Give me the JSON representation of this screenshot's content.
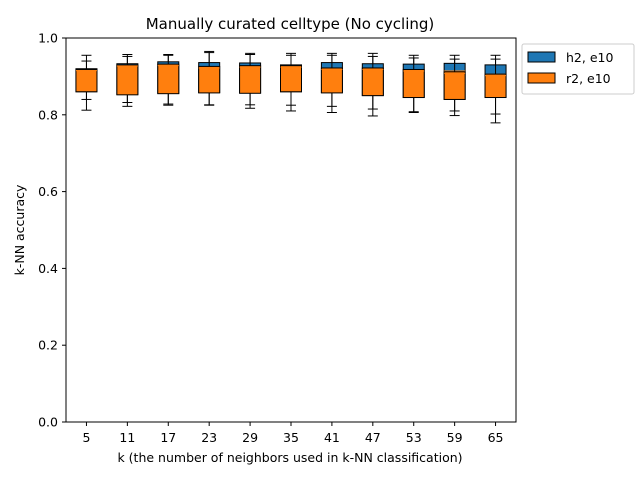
{
  "chart_data": {
    "type": "boxplot",
    "title": "Manually curated celltype (No cycling)",
    "xlabel": "k (the number of neighbors used in k-NN classification)",
    "ylabel": "k-NN accuracy",
    "ylim": [
      0.0,
      1.0
    ],
    "yticks": [
      0.0,
      0.2,
      0.4,
      0.6,
      0.8,
      1.0
    ],
    "yticklabels": [
      "0.0",
      "0.2",
      "0.4",
      "0.6",
      "0.8",
      "1.0"
    ],
    "categories": [
      "5",
      "11",
      "17",
      "23",
      "29",
      "35",
      "41",
      "47",
      "53",
      "59",
      "65"
    ],
    "grid": false,
    "legend_position": "outside-top-right",
    "series": [
      {
        "name": "h2, e10",
        "color": "#1f77b4",
        "boxes": [
          {
            "whislo": 0.84,
            "q1": 0.86,
            "med": 0.918,
            "q3": 0.92,
            "whishi": 0.94
          },
          {
            "whislo": 0.832,
            "q1": 0.853,
            "med": 0.928,
            "q3": 0.933,
            "whishi": 0.952
          },
          {
            "whislo": 0.828,
            "q1": 0.856,
            "med": 0.93,
            "q3": 0.938,
            "whishi": 0.955
          },
          {
            "whislo": 0.826,
            "q1": 0.858,
            "med": 0.925,
            "q3": 0.936,
            "whishi": 0.962
          },
          {
            "whislo": 0.826,
            "q1": 0.857,
            "med": 0.926,
            "q3": 0.935,
            "whishi": 0.957
          },
          {
            "whislo": 0.825,
            "q1": 0.86,
            "med": 0.926,
            "q3": 0.93,
            "whishi": 0.955
          },
          {
            "whislo": 0.822,
            "q1": 0.858,
            "med": 0.92,
            "q3": 0.936,
            "whishi": 0.96
          },
          {
            "whislo": 0.815,
            "q1": 0.85,
            "med": 0.922,
            "q3": 0.933,
            "whishi": 0.96
          },
          {
            "whislo": 0.808,
            "q1": 0.845,
            "med": 0.918,
            "q3": 0.932,
            "whishi": 0.955
          },
          {
            "whislo": 0.81,
            "q1": 0.84,
            "med": 0.914,
            "q3": 0.934,
            "whishi": 0.955
          },
          {
            "whislo": 0.802,
            "q1": 0.846,
            "med": 0.906,
            "q3": 0.93,
            "whishi": 0.955
          }
        ]
      },
      {
        "name": "r2, e10",
        "color": "#ff7f0e",
        "boxes": [
          {
            "whislo": 0.812,
            "q1": 0.86,
            "med": 0.915,
            "q3": 0.918,
            "whishi": 0.955
          },
          {
            "whislo": 0.822,
            "q1": 0.852,
            "med": 0.927,
            "q3": 0.93,
            "whishi": 0.957
          },
          {
            "whislo": 0.825,
            "q1": 0.855,
            "med": 0.928,
            "q3": 0.932,
            "whishi": 0.957
          },
          {
            "whislo": 0.825,
            "q1": 0.857,
            "med": 0.922,
            "q3": 0.926,
            "whishi": 0.965
          },
          {
            "whislo": 0.817,
            "q1": 0.856,
            "med": 0.924,
            "q3": 0.928,
            "whishi": 0.96
          },
          {
            "whislo": 0.81,
            "q1": 0.86,
            "med": 0.924,
            "q3": 0.928,
            "whishi": 0.96
          },
          {
            "whislo": 0.806,
            "q1": 0.857,
            "med": 0.918,
            "q3": 0.922,
            "whishi": 0.955
          },
          {
            "whislo": 0.797,
            "q1": 0.85,
            "med": 0.918,
            "q3": 0.922,
            "whishi": 0.952
          },
          {
            "whislo": 0.806,
            "q1": 0.845,
            "med": 0.914,
            "q3": 0.918,
            "whishi": 0.948
          },
          {
            "whislo": 0.798,
            "q1": 0.84,
            "med": 0.908,
            "q3": 0.912,
            "whishi": 0.945
          },
          {
            "whislo": 0.779,
            "q1": 0.845,
            "med": 0.902,
            "q3": 0.906,
            "whishi": 0.945
          }
        ]
      }
    ]
  }
}
